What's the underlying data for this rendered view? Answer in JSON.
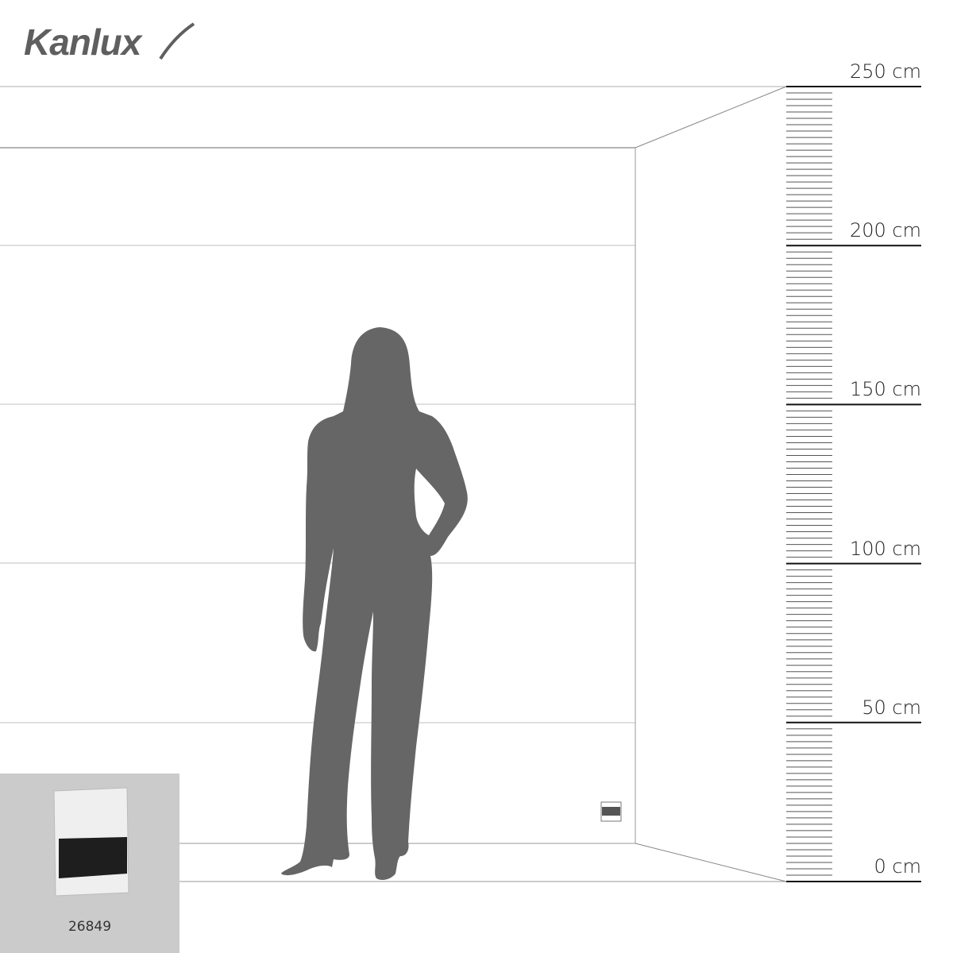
{
  "brand": {
    "logo_text": "Kanlux"
  },
  "ruler": {
    "unit": "cm",
    "labels": [
      "250 cm",
      "200 cm",
      "150 cm",
      "100 cm",
      "50 cm",
      "0 cm"
    ],
    "values": [
      250,
      200,
      150,
      100,
      50,
      0
    ],
    "minor_tick_step_cm": 2
  },
  "product": {
    "code": "26849",
    "colors": {
      "frame": "#efefef",
      "band": "#1e1e1e"
    }
  },
  "colors": {
    "silhouette": "#666666",
    "lines": "#bfbfbf",
    "thumb_bg": "#cbcbcb"
  }
}
